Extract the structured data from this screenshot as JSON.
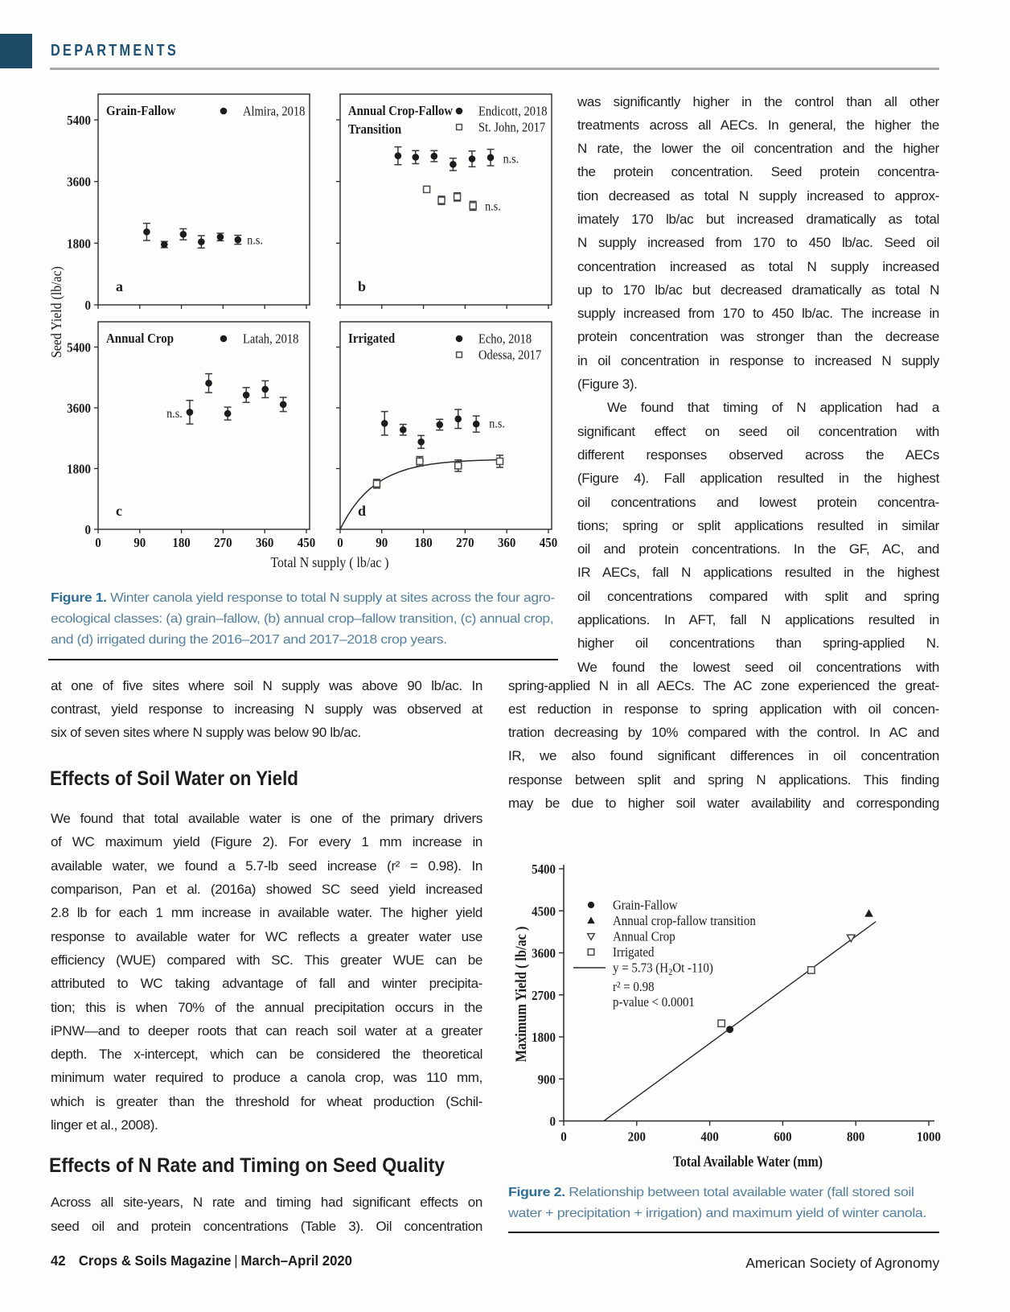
{
  "header": {
    "kicker": "DEPARTMENTS",
    "accent_color": "#1d4a66",
    "rule_color": "#a9a9a9"
  },
  "article": {
    "right_column_top": {
      "paragraphs": [
        {
          "indent": false,
          "justify_last": true,
          "lines": [
            "was significantly higher in the control than all other",
            "treatments across all AECs. In general, the higher the",
            "N rate, the lower the oil concentration and the higher",
            "the protein concentration. Seed protein concentra-",
            "tion decreased as total N supply increased to approx-",
            "imately 170 lb/ac but increased dramatically as total",
            "N supply increased from 170 to 450 lb/ac. Seed oil",
            "concentration increased as total N supply increased",
            "up to 170 lb/ac but decreased dramatically as total N",
            "supply increased from 170 to 450 lb/ac. The increase in",
            "protein concentration was stronger than the decrease",
            "in oil concentration in response to increased N supply",
            "(Figure 3)."
          ]
        },
        {
          "indent": true,
          "justify_last": true,
          "last_full": true,
          "lines": [
            "We found that timing of N application had a",
            "significant effect on seed oil concentration with",
            "different responses observed across the AECs",
            "(Figure 4). Fall application resulted in the highest",
            "oil concentrations and lowest protein concentra-",
            "tions; spring or split applications resulted in similar",
            "oil and protein concentrations. In the GF, AC, and",
            "IR AECs, fall N applications resulted in the highest",
            "oil concentrations compared with split and spring",
            "applications. In AFT, fall N applications resulted in",
            "higher oil concentrations than spring-applied N.",
            "We found the lowest seed oil concentrations with"
          ]
        }
      ]
    },
    "right_column_wide": {
      "paragraphs": [
        {
          "indent": false,
          "justify_last": true,
          "last_full": true,
          "lines": [
            "spring-applied N in all AECs. The AC zone experienced the great-",
            "est reduction in response to spring application with oil concen-",
            "tration decreasing by 10% compared with the control. In AC and",
            "IR, we also found significant differences in oil concentration",
            "response between split and spring N applications. This finding",
            "may be due to higher soil water availability and corresponding"
          ]
        }
      ]
    },
    "left_column_intro": {
      "paragraphs": [
        {
          "indent": false,
          "justify_last": false,
          "lines": [
            "at one of five sites where soil N supply was above 90 lb/ac. In",
            "contrast, yield response to increasing N supply was observed at",
            "six of seven sites where N supply was below 90 lb/ac."
          ]
        }
      ]
    },
    "heading_soil_water": "Effects of Soil Water on Yield",
    "left_column_soil_water": {
      "paragraphs": [
        {
          "indent": false,
          "justify_last": false,
          "lines": [
            "We found that total available water is one of the primary drivers",
            "of WC maximum yield (Figure 2). For every 1 mm increase in",
            "available water, we found a 5.7-lb seed increase (r² = 0.98). In",
            "comparison, Pan et al. (2016a) showed SC seed yield increased",
            "2.8 lb for each 1 mm increase in available water. The higher yield",
            "response to available water for WC reflects a greater water use",
            "efficiency (WUE) compared with SC. This greater WUE can be",
            "attributed to WC taking advantage of fall and winter precipita-",
            "tion; this is when 70% of the annual precipitation occurs in the",
            "iPNW—and to deeper roots that can reach soil water at a greater",
            "depth. The x-intercept, which can be considered the theoretical",
            "minimum water required to produce a canola crop, was 110 mm,",
            "which is greater than the threshold for wheat production (Schil-",
            "linger et al., 2008)."
          ]
        }
      ]
    },
    "heading_n_rate": "Effects of N Rate and Timing on Seed Quality",
    "left_column_n_rate": {
      "paragraphs": [
        {
          "indent": false,
          "justify_last": true,
          "last_full": true,
          "lines": [
            "Across all site-years, N rate and timing had significant effects on",
            "seed oil and protein concentrations (Table 3). Oil concentration"
          ]
        }
      ]
    }
  },
  "figure1": {
    "caption_label": "Figure 1.",
    "caption_lines": [
      " Winter canola yield response to total N supply at sites across the four agro-",
      "ecological classes: (a) grain–fallow, (b) annual crop–fallow transition, (c) annual crop,",
      "and (d) irrigated during the 2016–2017 and 2017–2018 crop years."
    ]
  },
  "figure2": {
    "caption_label": "Figure 2.",
    "caption_lines": [
      " Relationship between total available water (fall stored soil",
      "water + precipitation + irrigation) and maximum yield of winter canola."
    ]
  },
  "footer": {
    "page_number": "42",
    "magazine": "Crops & Soils Magazine",
    "separator": "|",
    "issue": "March–April 2020",
    "society": "American Society of Agronomy"
  },
  "chart_data": [
    {
      "id": "figure1",
      "type": "scatter",
      "title": "Winter canola yield response to total N supply",
      "xlabel": "Total N supply (  lb/ac  )",
      "ylabel": "Seed Yield (lb/ac)",
      "x_ticks": [
        0,
        90,
        180,
        270,
        360,
        450
      ],
      "y_ticks": [
        0,
        1800,
        3600,
        5400
      ],
      "xlim": [
        0,
        457
      ],
      "ylim": [
        0,
        6150
      ],
      "panels": [
        {
          "letter": "a",
          "title_lines": [
            "Grain-Fallow"
          ],
          "show_x_labels": false,
          "show_y_labels": true,
          "legend_dx": 156,
          "legend_text_dx": 180,
          "legend": [
            {
              "marker": "circle",
              "label": "Almira, 2018"
            }
          ],
          "series": [
            {
              "name": "Almira, 2018",
              "marker": "circle",
              "points": [
                [
                  105,
                  2130,
                  250
                ],
                [
                  143,
                  1760,
                  90
                ],
                [
                  184,
                  2060,
                  160
                ],
                [
                  223,
                  1840,
                  180
                ],
                [
                  264,
                  1980,
                  110
                ],
                [
                  302,
                  1900,
                  130
                ]
              ]
            }
          ],
          "annotations": [
            {
              "text": "n.s.",
              "x": 322,
              "y": 1890,
              "anchor": "start"
            }
          ]
        },
        {
          "letter": "b",
          "title_lines": [
            "Annual Crop-Fallow",
            "Transition"
          ],
          "show_x_labels": false,
          "show_y_labels": false,
          "legend_dx": 148,
          "legend_text_dx": 172,
          "legend": [
            {
              "marker": "circle",
              "label": "Endicott, 2018"
            },
            {
              "marker": "square",
              "label": "St. John, 2017"
            }
          ],
          "series": [
            {
              "name": "Endicott, 2018",
              "marker": "circle",
              "points": [
                [
                  125,
                  4350,
                  260
                ],
                [
                  163,
                  4310,
                  190
                ],
                [
                  203,
                  4340,
                  160
                ],
                [
                  244,
                  4100,
                  180
                ],
                [
                  285,
                  4260,
                  230
                ],
                [
                  325,
                  4300,
                  240
                ]
              ]
            },
            {
              "name": "St. John, 2017",
              "marker": "square",
              "points": [
                [
                  187,
                  3370,
                  90
                ],
                [
                  219,
                  3050,
                  120
                ],
                [
                  253,
                  3150,
                  120
                ],
                [
                  287,
                  2890,
                  130
                ]
              ]
            }
          ],
          "annotations": [
            {
              "text": "n.s.",
              "x": 352,
              "y": 4260,
              "anchor": "start"
            },
            {
              "text": "n.s.",
              "x": 313,
              "y": 2870,
              "anchor": "start"
            }
          ]
        },
        {
          "letter": "c",
          "title_lines": [
            "Annual Crop"
          ],
          "show_x_labels": true,
          "show_y_labels": true,
          "legend_dx": 156,
          "legend_text_dx": 180,
          "legend": [
            {
              "marker": "circle",
              "label": "Latah, 2018"
            }
          ],
          "series": [
            {
              "name": "Latah, 2018",
              "marker": "circle",
              "points": [
                [
                  198,
                  3470,
                  350
                ],
                [
                  239,
                  4330,
                  280
                ],
                [
                  280,
                  3430,
                  190
                ],
                [
                  320,
                  3980,
                  220
                ],
                [
                  361,
                  4150,
                  250
                ],
                [
                  400,
                  3700,
                  210
                ]
              ]
            }
          ],
          "annotations": [
            {
              "text": "n.s.",
              "x": 182,
              "y": 3430,
              "anchor": "end"
            }
          ]
        },
        {
          "letter": "d",
          "title_lines": [
            "Irrigated"
          ],
          "show_x_labels": true,
          "show_y_labels": false,
          "legend_dx": 148,
          "legend_text_dx": 172,
          "legend": [
            {
              "marker": "circle",
              "label": "Echo, 2018"
            },
            {
              "marker": "square",
              "label": "Odessa, 2017"
            }
          ],
          "series": [
            {
              "name": "Echo, 2018",
              "marker": "circle",
              "points": [
                [
                  96,
                  3140,
                  350
                ],
                [
                  136,
                  2950,
                  160
                ],
                [
                  175,
                  2590,
                  190
                ],
                [
                  215,
                  3100,
                  160
                ],
                [
                  255,
                  3270,
                  280
                ],
                [
                  294,
                  3120,
                  240
                ]
              ]
            },
            {
              "name": "Odessa, 2017",
              "marker": "square",
              "points": [
                [
                  79,
                  1350,
                  130
                ],
                [
                  172,
                  2015,
                  140
                ],
                [
                  255,
                  1885,
                  170
                ],
                [
                  345,
                  2015,
                  180
                ]
              ]
            }
          ],
          "curve": {
            "ymax": 2080,
            "k": 75,
            "x0": 0,
            "x1": 352
          },
          "annotations": [
            {
              "text": "n.s.",
              "x": 322,
              "y": 3130,
              "anchor": "start"
            }
          ]
        }
      ]
    },
    {
      "id": "figure2",
      "type": "scatter",
      "title": "Relationship between total available water and maximum yield of winter canola",
      "xlabel": "Total Available Water (mm)",
      "ylabel": "Maximum Yield ( lb/ac )",
      "x_ticks": [
        0,
        200,
        400,
        600,
        800,
        1000
      ],
      "y_ticks": [
        0,
        900,
        1800,
        2700,
        3600,
        4500,
        5400
      ],
      "xlim": [
        0,
        1000
      ],
      "ylim": [
        0,
        5400
      ],
      "series": [
        {
          "name": "Grain-Fallow",
          "marker": "circle",
          "points": [
            [
              455,
              1960
            ]
          ]
        },
        {
          "name": "Annual crop-fallow transition",
          "marker": "triangle",
          "points": [
            [
              836,
              4440
            ]
          ]
        },
        {
          "name": "Annual Crop",
          "marker": "nabla",
          "points": [
            [
              787,
              3920
            ]
          ]
        },
        {
          "name": "Irrigated",
          "marker": "square",
          "points": [
            [
              432,
              2090
            ],
            [
              678,
              3230
            ]
          ]
        }
      ],
      "fit_line": {
        "label": "y = 5.73 (H₂Ot -110)",
        "slope": 5.73,
        "x_intercept": 110,
        "x_end": 855
      },
      "stats": [
        "r² = 0.98",
        "p-value < 0.0001"
      ]
    }
  ]
}
